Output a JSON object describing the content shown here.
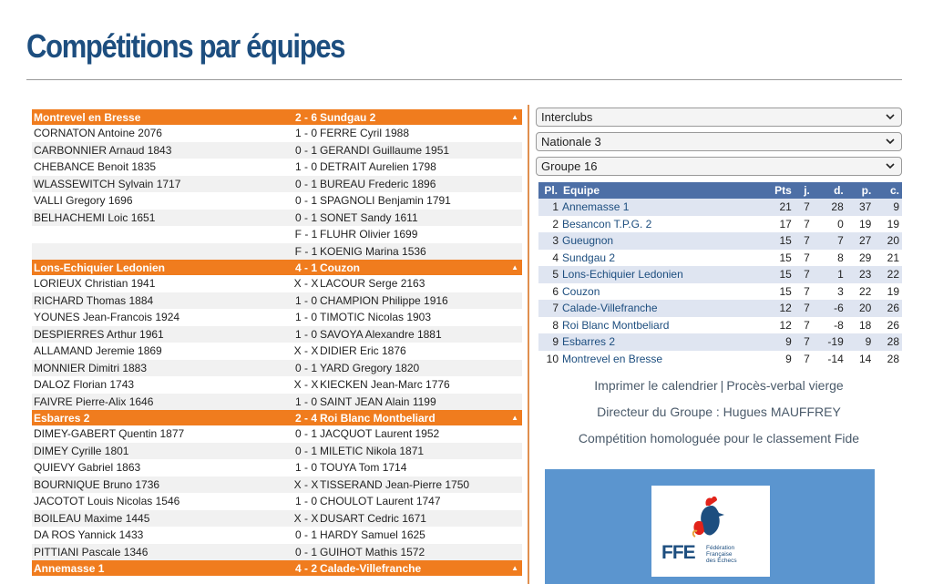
{
  "page": {
    "title": "Compétitions par équipes"
  },
  "matches": [
    {
      "home": "Montrevel en Bresse",
      "score": "2 - 6",
      "away": "Sundgau 2",
      "games": [
        {
          "white": "CORNATON Antoine 2076",
          "result": "1 - 0",
          "black": "FERRE Cyril 1988"
        },
        {
          "white": "CARBONNIER Arnaud 1843",
          "result": "0 - 1",
          "black": "GERANDI Guillaume 1951"
        },
        {
          "white": "CHEBANCE Benoit 1835",
          "result": "1 - 0",
          "black": "DETRAIT Aurelien 1798"
        },
        {
          "white": "WLASSEWITCH Sylvain 1717",
          "result": "0 - 1",
          "black": "BUREAU Frederic 1896"
        },
        {
          "white": "VALLI Gregory 1696",
          "result": "0 - 1",
          "black": "SPAGNOLI Benjamin 1791"
        },
        {
          "white": "BELHACHEMI Loic 1651",
          "result": "0 - 1",
          "black": "SONET Sandy 1611"
        },
        {
          "white": "",
          "result": "F - 1",
          "black": "FLUHR Olivier 1699"
        },
        {
          "white": "",
          "result": "F - 1",
          "black": "KOENIG Marina 1536"
        }
      ]
    },
    {
      "home": "Lons-Echiquier Ledonien",
      "score": "4 - 1",
      "away": "Couzon",
      "games": [
        {
          "white": "LORIEUX Christian 1941",
          "result": "X - X",
          "black": "LACOUR Serge 2163"
        },
        {
          "white": "RICHARD Thomas 1884",
          "result": "1 - 0",
          "black": "CHAMPION Philippe 1916"
        },
        {
          "white": "YOUNES Jean-Francois 1924",
          "result": "1 - 0",
          "black": "TIMOTIC Nicolas 1903"
        },
        {
          "white": "DESPIERRES Arthur 1961",
          "result": "1 - 0",
          "black": "SAVOYA Alexandre 1881"
        },
        {
          "white": "ALLAMAND Jeremie 1869",
          "result": "X - X",
          "black": "DIDIER Eric 1876"
        },
        {
          "white": "MONNIER Dimitri 1883",
          "result": "0 - 1",
          "black": "YARD Gregory 1820"
        },
        {
          "white": "DALOZ Florian 1743",
          "result": "X - X",
          "black": "KIECKEN Jean-Marc 1776"
        },
        {
          "white": "FAIVRE Pierre-Alix 1646",
          "result": "1 - 0",
          "black": "SAINT JEAN Alain 1199"
        }
      ]
    },
    {
      "home": "Esbarres 2",
      "score": "2 - 4",
      "away": "Roi Blanc Montbeliard",
      "games": [
        {
          "white": "DIMEY-GABERT Quentin 1877",
          "result": "0 - 1",
          "black": "JACQUOT Laurent 1952"
        },
        {
          "white": "DIMEY Cyrille 1801",
          "result": "0 - 1",
          "black": "MILETIC Nikola 1871"
        },
        {
          "white": "QUIEVY Gabriel 1863",
          "result": "1 - 0",
          "black": "TOUYA Tom 1714"
        },
        {
          "white": "BOURNIQUE Bruno 1736",
          "result": "X - X",
          "black": "TISSERAND Jean-Pierre 1750"
        },
        {
          "white": "JACOTOT Louis Nicolas 1546",
          "result": "1 - 0",
          "black": "CHOULOT Laurent 1747"
        },
        {
          "white": "BOILEAU Maxime 1445",
          "result": "X - X",
          "black": "DUSART Cedric 1671"
        },
        {
          "white": "DA ROS Yannick 1433",
          "result": "0 - 1",
          "black": "HARDY Samuel 1625"
        },
        {
          "white": "PITTIANI Pascale 1346",
          "result": "0 - 1",
          "black": "GUIHOT Mathis 1572"
        }
      ]
    },
    {
      "home": "Annemasse 1",
      "score": "4 - 2",
      "away": "Calade-Villefranche",
      "games": []
    }
  ],
  "toggle_glyph": "▲",
  "selects": [
    {
      "value": "Interclubs"
    },
    {
      "value": "Nationale 3"
    },
    {
      "value": "Groupe 16"
    }
  ],
  "standings": {
    "headers": [
      "Pl.",
      "Equipe",
      "Pts",
      "j.",
      "d.",
      "p.",
      "c."
    ],
    "rows": [
      [
        "1",
        "Annemasse 1",
        "21",
        "7",
        "28",
        "37",
        "9"
      ],
      [
        "2",
        "Besancon T.P.G. 2",
        "17",
        "7",
        "0",
        "19",
        "19"
      ],
      [
        "3",
        "Gueugnon",
        "15",
        "7",
        "7",
        "27",
        "20"
      ],
      [
        "4",
        "Sundgau 2",
        "15",
        "7",
        "8",
        "29",
        "21"
      ],
      [
        "5",
        "Lons-Echiquier Ledonien",
        "15",
        "7",
        "1",
        "23",
        "22"
      ],
      [
        "6",
        "Couzon",
        "15",
        "7",
        "3",
        "22",
        "19"
      ],
      [
        "7",
        "Calade-Villefranche",
        "12",
        "7",
        "-6",
        "20",
        "26"
      ],
      [
        "8",
        "Roi Blanc Montbeliard",
        "12",
        "7",
        "-8",
        "18",
        "26"
      ],
      [
        "9",
        "Esbarres 2",
        "9",
        "7",
        "-19",
        "9",
        "28"
      ],
      [
        "10",
        "Montrevel en Bresse",
        "9",
        "7",
        "-14",
        "14",
        "28"
      ]
    ]
  },
  "links": {
    "print_calendar": "Imprimer le calendrier",
    "separator": "|",
    "blank_report": "Procès-verbal vierge",
    "director": "Directeur du Groupe : Hugues MAUFFREY",
    "fide": "Compétition homologuée pour le classement Fide"
  },
  "ffe": {
    "acronym": "FFE",
    "line1": "Fédération",
    "line2": "Française",
    "line3": "des Échecs"
  },
  "colors": {
    "title": "#1d4e7f",
    "match_header": "#f07c1e",
    "table_header": "#4d6fa6",
    "ffe_panel": "#5b95cf"
  }
}
